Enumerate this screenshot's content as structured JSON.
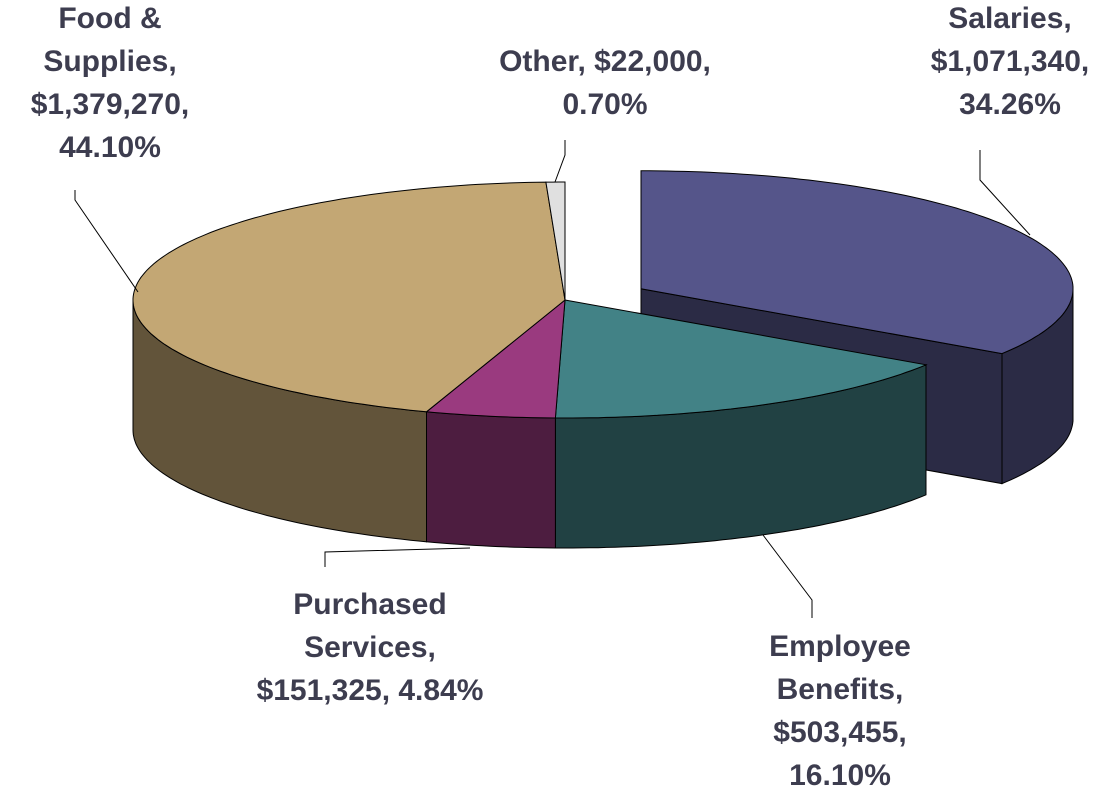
{
  "chart_data": {
    "type": "pie3d",
    "labels": [
      [
        "Salaries,",
        "$1,071,340,",
        "34.26%"
      ],
      [
        "Employee",
        "Benefits,",
        "$503,455,",
        "16.10%"
      ],
      [
        "Purchased",
        "Services,",
        "$151,325, 4.84%"
      ],
      [
        "Food &",
        "Supplies,",
        "$1,379,270,",
        "44.10%"
      ],
      [
        "Other, $22,000,",
        "0.70%"
      ]
    ],
    "values": [
      1071340,
      503455,
      151325,
      1379270,
      22000
    ],
    "colors": [
      "#55558a",
      "#428286",
      "#9a3a7f",
      "#c3a774",
      "#e0e0e0"
    ],
    "explode": [
      0.2,
      0,
      0,
      0,
      0
    ]
  }
}
